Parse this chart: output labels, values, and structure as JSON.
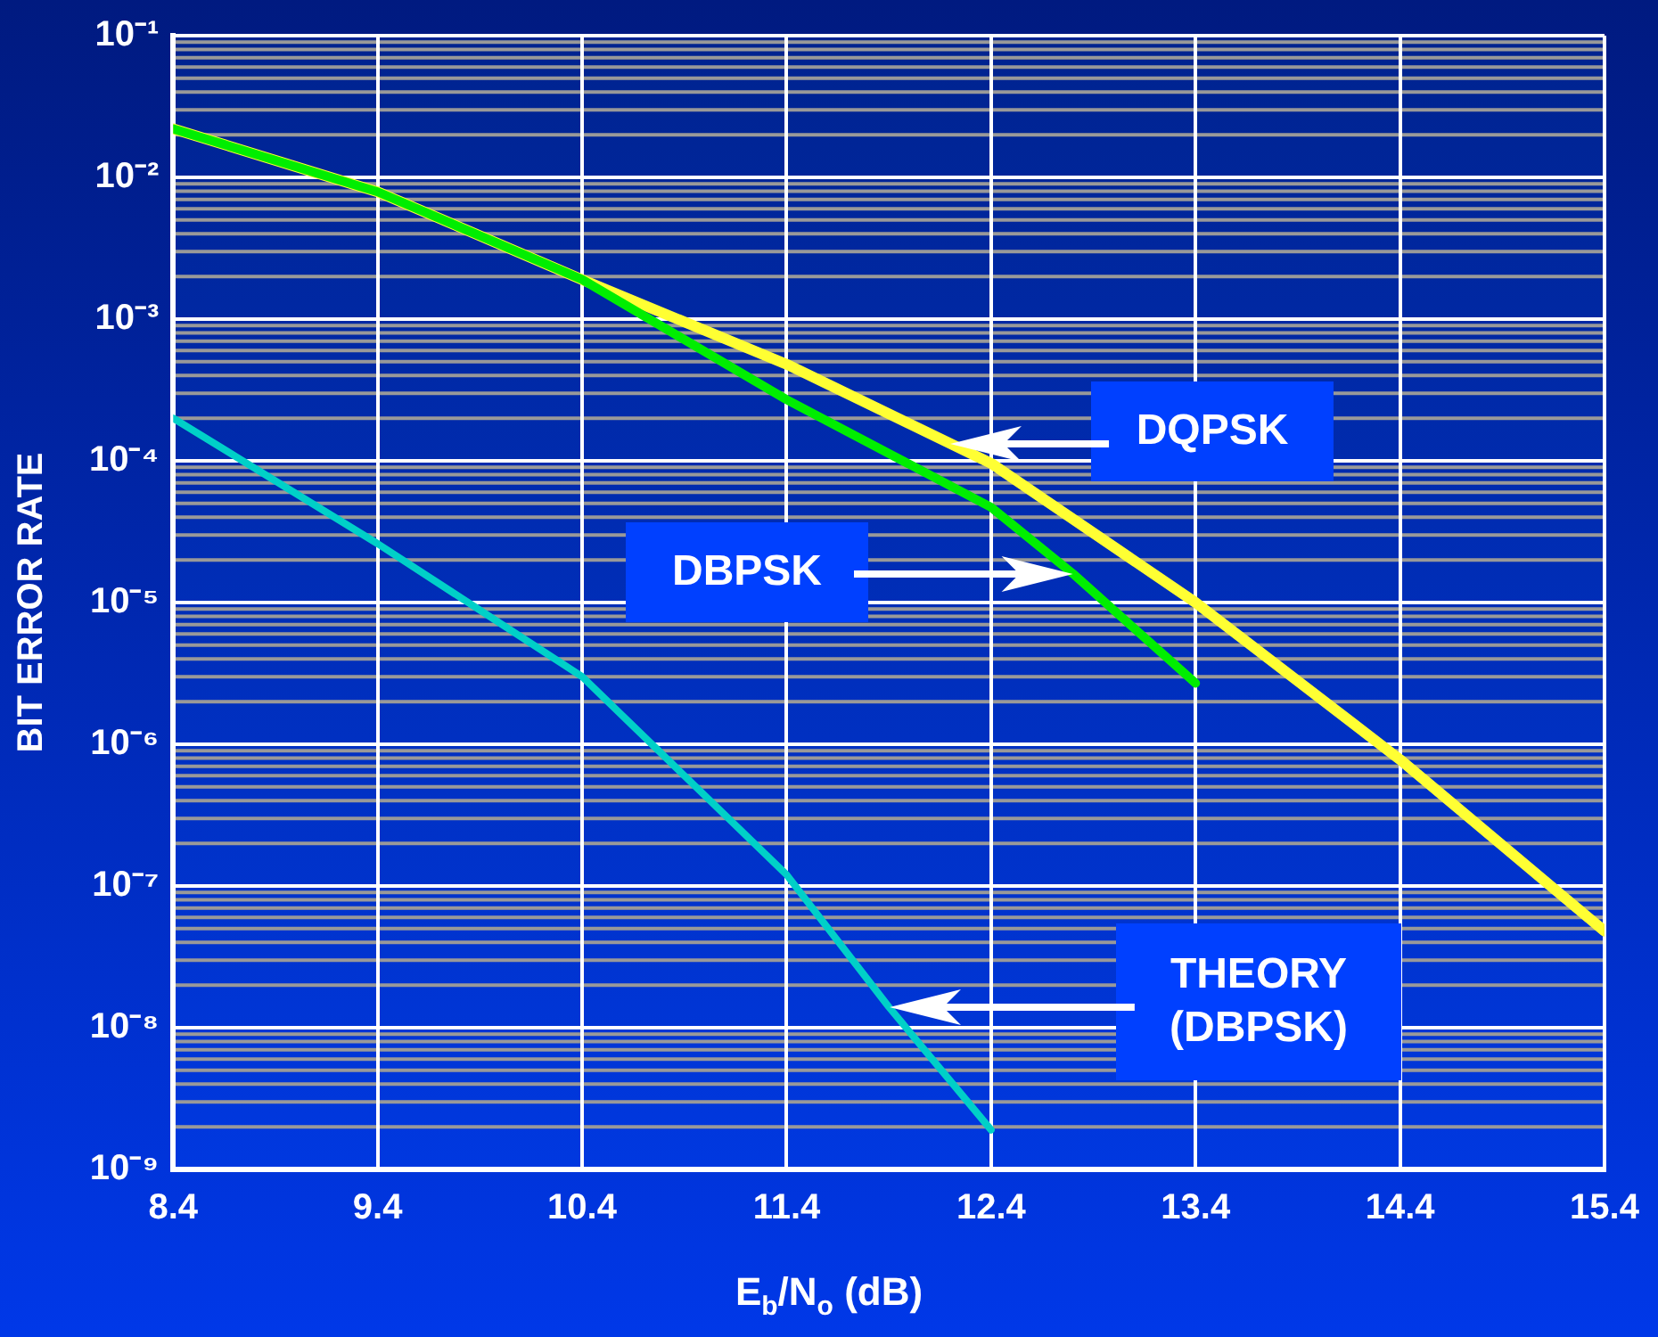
{
  "chart_data": {
    "type": "line",
    "xlabel": "E$_{b}$/N$_{o}$ (dB)",
    "ylabel": "BIT ERROR RATE",
    "log": "y",
    "grid": true,
    "legend": false,
    "marker": "none",
    "line_style": "solid",
    "xlim": [
      8.4,
      15.4
    ],
    "xticks": [
      8.4,
      9.4,
      10.4,
      11.4,
      12.4,
      13.4,
      14.4,
      15.4
    ],
    "ylim": [
      1e-09,
      0.1
    ],
    "yticks": [
      {
        "value": 0.1,
        "label": "10⁻¹"
      },
      {
        "value": 0.01,
        "label": "10⁻²"
      },
      {
        "value": 0.001,
        "label": "10⁻³"
      },
      {
        "value": 0.0001,
        "label": "10⁻⁴"
      },
      {
        "value": 1e-05,
        "label": "10⁻⁵"
      },
      {
        "value": 1e-06,
        "label": "10⁻⁶"
      },
      {
        "value": 1e-07,
        "label": "10⁻⁷"
      },
      {
        "value": 1e-08,
        "label": "10⁻⁸"
      },
      {
        "value": 1e-09,
        "label": "10⁻⁹"
      }
    ],
    "series": [
      {
        "name": "DQPSK",
        "color": "#ffff33",
        "x": [
          8.4,
          9.4,
          10.4,
          11.4,
          12.4,
          13.4,
          14.4,
          15.4
        ],
        "values": [
          0.022,
          0.0079,
          0.0019,
          0.00048,
          9.6e-05,
          1e-05,
          7.8e-07,
          4.8e-08
        ]
      },
      {
        "name": "DBPSK",
        "color": "#00ee00",
        "x": [
          8.4,
          9.4,
          10.4,
          11.4,
          12.4,
          12.8,
          13.4
        ],
        "values": [
          0.022,
          0.0079,
          0.0019,
          0.00027,
          4.7e-05,
          1.6e-05,
          2.7e-06
        ]
      },
      {
        "name": "THEORY (DBPSK)",
        "color": "#00d0c8",
        "x": [
          8.4,
          9.4,
          10.4,
          11.4,
          11.9,
          12.4
        ],
        "values": [
          0.0002,
          2.6e-05,
          3e-06,
          1.2e-07,
          1.4e-08,
          1.9e-09
        ]
      }
    ]
  }
}
